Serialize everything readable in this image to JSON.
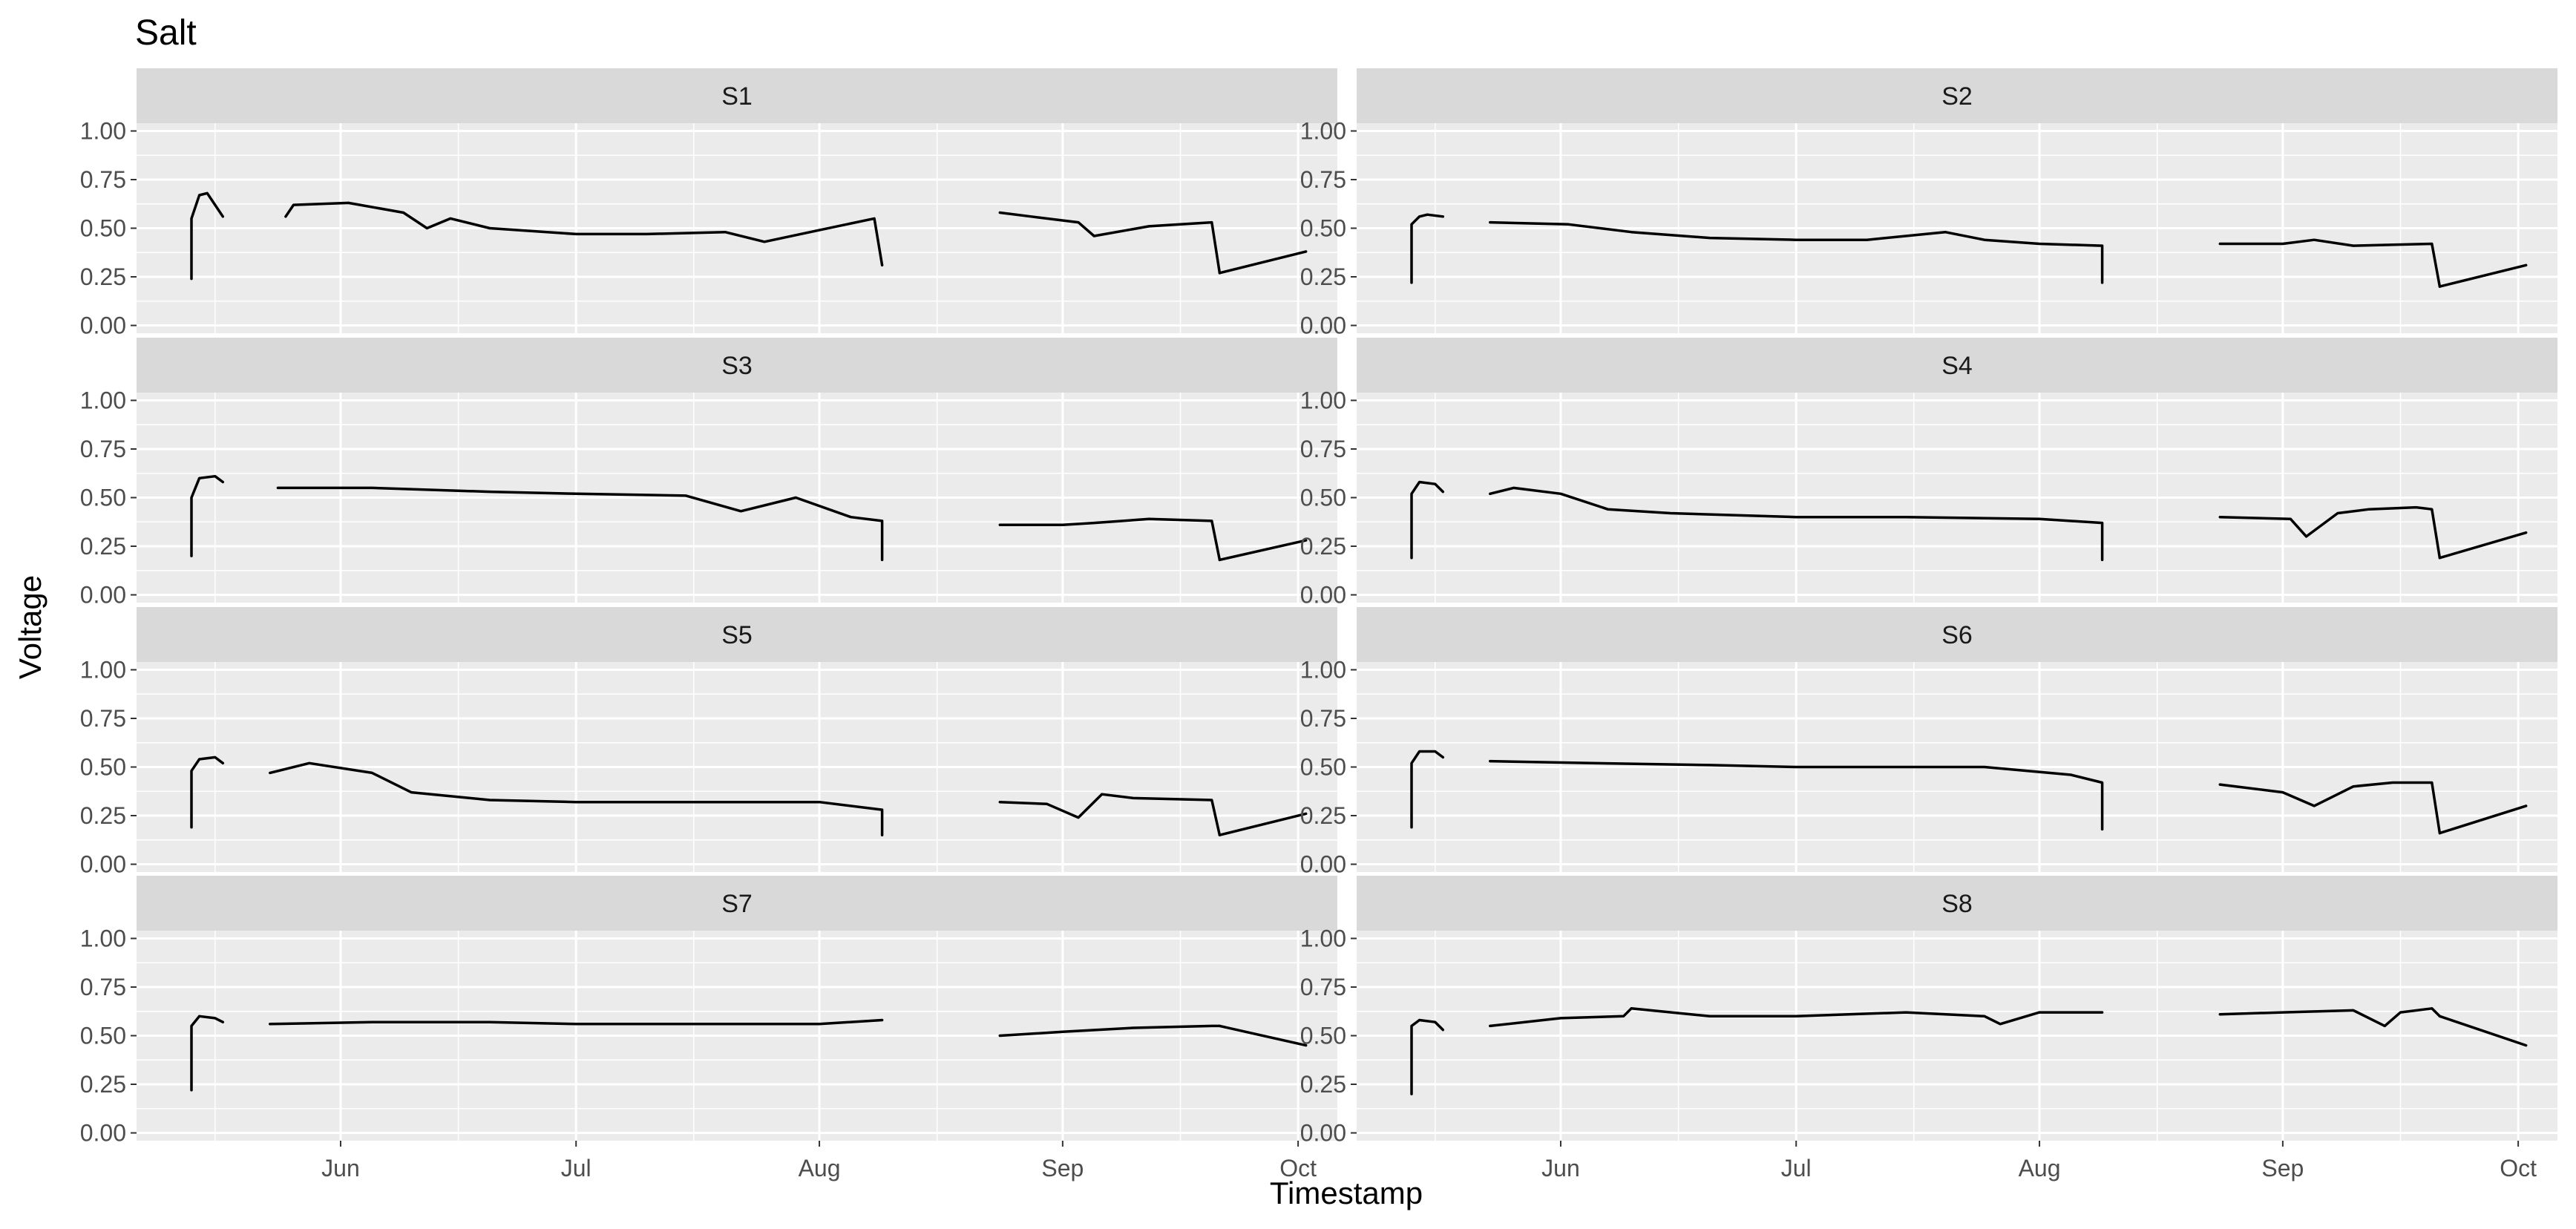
{
  "chart_data": {
    "type": "line",
    "title": "Salt",
    "xlabel": "Timestamp",
    "ylabel": "Voltage",
    "ylim": [
      -0.04,
      1.04
    ],
    "xlim": [
      "2020-05-06",
      "2020-10-06"
    ],
    "y_ticks": [
      0.0,
      0.25,
      0.5,
      0.75,
      1.0
    ],
    "y_tick_labels": [
      "0.00",
      "0.25",
      "0.50",
      "0.75",
      "1.00"
    ],
    "x_major_ticks": [
      "2020-06-01",
      "2020-07-01",
      "2020-08-01",
      "2020-09-01",
      "2020-10-01"
    ],
    "x_tick_labels": [
      "Jun",
      "Jul",
      "Aug",
      "Sep",
      "Oct"
    ],
    "x_minor_ticks": [
      "2020-05-16",
      "2020-06-16",
      "2020-07-16",
      "2020-08-16",
      "2020-09-16"
    ],
    "grid": true,
    "facet_layout": {
      "rows": 4,
      "cols": 2
    },
    "panels": [
      {
        "name": "S1",
        "series": [
          {
            "x": [
              "2020-05-13",
              "2020-05-13",
              "2020-05-14",
              "2020-05-15",
              "2020-05-16",
              "2020-05-17"
            ],
            "y": [
              0.24,
              0.55,
              0.67,
              0.68,
              0.62,
              0.56
            ]
          },
          {
            "x": [
              "2020-05-25",
              "2020-05-26",
              "2020-06-02",
              "2020-06-09",
              "2020-06-12",
              "2020-06-15",
              "2020-06-20",
              "2020-07-01",
              "2020-07-10",
              "2020-07-20",
              "2020-07-25",
              "2020-08-01",
              "2020-08-08",
              "2020-08-09"
            ],
            "y": [
              0.56,
              0.62,
              0.63,
              0.58,
              0.5,
              0.55,
              0.5,
              0.47,
              0.47,
              0.48,
              0.43,
              0.49,
              0.55,
              0.31
            ]
          },
          {
            "x": [
              "2020-08-24",
              "2020-08-28",
              "2020-09-03",
              "2020-09-05",
              "2020-09-12",
              "2020-09-20",
              "2020-09-21"
            ],
            "y": [
              0.58,
              0.56,
              0.53,
              0.46,
              0.51,
              0.53,
              0.27
            ]
          },
          {
            "x": [
              "2020-09-21",
              "2020-10-02"
            ],
            "y": [
              0.27,
              0.38
            ]
          }
        ]
      },
      {
        "name": "S2",
        "series": [
          {
            "x": [
              "2020-05-13",
              "2020-05-13",
              "2020-05-14",
              "2020-05-15",
              "2020-05-17"
            ],
            "y": [
              0.22,
              0.52,
              0.56,
              0.57,
              0.56
            ]
          },
          {
            "x": [
              "2020-05-23",
              "2020-06-02",
              "2020-06-10",
              "2020-06-20",
              "2020-07-01",
              "2020-07-10",
              "2020-07-20",
              "2020-07-25",
              "2020-08-01",
              "2020-08-09",
              "2020-08-09"
            ],
            "y": [
              0.53,
              0.52,
              0.48,
              0.45,
              0.44,
              0.44,
              0.48,
              0.44,
              0.42,
              0.41,
              0.22
            ]
          },
          {
            "x": [
              "2020-08-24",
              "2020-09-01",
              "2020-09-05",
              "2020-09-10",
              "2020-09-20",
              "2020-09-21"
            ],
            "y": [
              0.42,
              0.42,
              0.44,
              0.41,
              0.42,
              0.2
            ]
          },
          {
            "x": [
              "2020-09-21",
              "2020-10-02"
            ],
            "y": [
              0.2,
              0.31
            ]
          }
        ]
      },
      {
        "name": "S3",
        "series": [
          {
            "x": [
              "2020-05-13",
              "2020-05-13",
              "2020-05-14",
              "2020-05-16",
              "2020-05-17"
            ],
            "y": [
              0.2,
              0.5,
              0.6,
              0.61,
              0.58
            ]
          },
          {
            "x": [
              "2020-05-24",
              "2020-06-05",
              "2020-06-20",
              "2020-07-01",
              "2020-07-15",
              "2020-07-22",
              "2020-07-29",
              "2020-08-05",
              "2020-08-09",
              "2020-08-09"
            ],
            "y": [
              0.55,
              0.55,
              0.53,
              0.52,
              0.51,
              0.43,
              0.5,
              0.4,
              0.38,
              0.18
            ]
          },
          {
            "x": [
              "2020-08-24",
              "2020-09-01",
              "2020-09-05",
              "2020-09-12",
              "2020-09-20",
              "2020-09-21"
            ],
            "y": [
              0.36,
              0.36,
              0.37,
              0.39,
              0.38,
              0.18
            ]
          },
          {
            "x": [
              "2020-09-21",
              "2020-10-02"
            ],
            "y": [
              0.18,
              0.28
            ]
          }
        ]
      },
      {
        "name": "S4",
        "series": [
          {
            "x": [
              "2020-05-13",
              "2020-05-13",
              "2020-05-14",
              "2020-05-16",
              "2020-05-17"
            ],
            "y": [
              0.19,
              0.52,
              0.58,
              0.57,
              0.53
            ]
          },
          {
            "x": [
              "2020-05-23",
              "2020-05-26",
              "2020-06-01",
              "2020-06-07",
              "2020-06-15",
              "2020-07-01",
              "2020-07-15",
              "2020-08-01",
              "2020-08-09",
              "2020-08-09"
            ],
            "y": [
              0.52,
              0.55,
              0.52,
              0.44,
              0.42,
              0.4,
              0.4,
              0.39,
              0.37,
              0.18
            ]
          },
          {
            "x": [
              "2020-08-24",
              "2020-09-02",
              "2020-09-04",
              "2020-09-08",
              "2020-09-12",
              "2020-09-18",
              "2020-09-20",
              "2020-09-21"
            ],
            "y": [
              0.4,
              0.39,
              0.3,
              0.42,
              0.44,
              0.45,
              0.44,
              0.19
            ]
          },
          {
            "x": [
              "2020-09-21",
              "2020-10-02"
            ],
            "y": [
              0.19,
              0.32
            ]
          }
        ]
      },
      {
        "name": "S5",
        "series": [
          {
            "x": [
              "2020-05-13",
              "2020-05-13",
              "2020-05-14",
              "2020-05-16",
              "2020-05-17"
            ],
            "y": [
              0.19,
              0.48,
              0.54,
              0.55,
              0.52
            ]
          },
          {
            "x": [
              "2020-05-23",
              "2020-05-28",
              "2020-06-05",
              "2020-06-10",
              "2020-06-20",
              "2020-07-01",
              "2020-07-15",
              "2020-08-01",
              "2020-08-09",
              "2020-08-09"
            ],
            "y": [
              0.47,
              0.52,
              0.47,
              0.37,
              0.33,
              0.32,
              0.32,
              0.32,
              0.28,
              0.15
            ]
          },
          {
            "x": [
              "2020-08-24",
              "2020-08-30",
              "2020-09-03",
              "2020-09-06",
              "2020-09-10",
              "2020-09-20",
              "2020-09-21"
            ],
            "y": [
              0.32,
              0.31,
              0.24,
              0.36,
              0.34,
              0.33,
              0.15
            ]
          },
          {
            "x": [
              "2020-09-21",
              "2020-10-02"
            ],
            "y": [
              0.15,
              0.26
            ]
          }
        ]
      },
      {
        "name": "S6",
        "series": [
          {
            "x": [
              "2020-05-13",
              "2020-05-13",
              "2020-05-14",
              "2020-05-16",
              "2020-05-17"
            ],
            "y": [
              0.19,
              0.52,
              0.58,
              0.58,
              0.55
            ]
          },
          {
            "x": [
              "2020-05-23",
              "2020-06-05",
              "2020-06-20",
              "2020-07-01",
              "2020-07-15",
              "2020-07-25",
              "2020-08-05",
              "2020-08-09",
              "2020-08-09"
            ],
            "y": [
              0.53,
              0.52,
              0.51,
              0.5,
              0.5,
              0.5,
              0.46,
              0.42,
              0.18
            ]
          },
          {
            "x": [
              "2020-08-24",
              "2020-09-01",
              "2020-09-05",
              "2020-09-10",
              "2020-09-15",
              "2020-09-20",
              "2020-09-21"
            ],
            "y": [
              0.41,
              0.37,
              0.3,
              0.4,
              0.42,
              0.42,
              0.16
            ]
          },
          {
            "x": [
              "2020-09-21",
              "2020-10-02"
            ],
            "y": [
              0.16,
              0.3
            ]
          }
        ]
      },
      {
        "name": "S7",
        "series": [
          {
            "x": [
              "2020-05-13",
              "2020-05-13",
              "2020-05-14",
              "2020-05-16",
              "2020-05-17"
            ],
            "y": [
              0.22,
              0.55,
              0.6,
              0.59,
              0.57
            ]
          },
          {
            "x": [
              "2020-05-23",
              "2020-06-05",
              "2020-06-20",
              "2020-07-01",
              "2020-07-15",
              "2020-08-01",
              "2020-08-09"
            ],
            "y": [
              0.56,
              0.57,
              0.57,
              0.56,
              0.56,
              0.56,
              0.58
            ]
          },
          {
            "x": [
              "2020-08-24",
              "2020-09-01",
              "2020-09-10",
              "2020-09-20",
              "2020-09-21"
            ],
            "y": [
              0.5,
              0.52,
              0.54,
              0.55,
              0.55
            ]
          },
          {
            "x": [
              "2020-09-21",
              "2020-10-02"
            ],
            "y": [
              0.55,
              0.45
            ]
          }
        ]
      },
      {
        "name": "S8",
        "series": [
          {
            "x": [
              "2020-05-13",
              "2020-05-13",
              "2020-05-14",
              "2020-05-16",
              "2020-05-17"
            ],
            "y": [
              0.2,
              0.55,
              0.58,
              0.57,
              0.53
            ]
          },
          {
            "x": [
              "2020-05-23",
              "2020-06-01",
              "2020-06-09",
              "2020-06-10",
              "2020-06-20",
              "2020-07-01",
              "2020-07-15",
              "2020-07-25",
              "2020-07-27",
              "2020-08-01",
              "2020-08-09"
            ],
            "y": [
              0.55,
              0.59,
              0.6,
              0.64,
              0.6,
              0.6,
              0.62,
              0.6,
              0.56,
              0.62,
              0.62
            ]
          },
          {
            "x": [
              "2020-08-24",
              "2020-09-01",
              "2020-09-10",
              "2020-09-14",
              "2020-09-16",
              "2020-09-20",
              "2020-09-21"
            ],
            "y": [
              0.61,
              0.62,
              0.63,
              0.55,
              0.62,
              0.64,
              0.6
            ]
          },
          {
            "x": [
              "2020-09-21",
              "2020-10-02"
            ],
            "y": [
              0.6,
              0.45
            ]
          }
        ]
      }
    ]
  },
  "colors": {
    "panel_background": "#ebebeb",
    "strip_background": "#d9d9d9",
    "grid_major": "#ffffff",
    "line": "#000000",
    "tick_text": "#4d4d4d",
    "axis_ticks": "#333333"
  }
}
